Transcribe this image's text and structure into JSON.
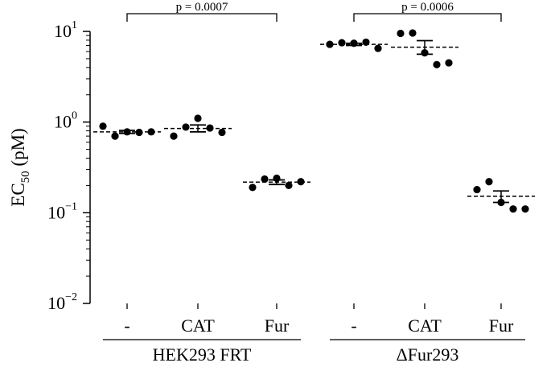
{
  "chart_data": {
    "type": "scatter",
    "title": "",
    "ylabel": "EC",
    "ylabel_sub": "50",
    "ylabel_unit": " (pM)",
    "yscale": "log",
    "ylim": [
      0.01,
      10
    ],
    "yticks": [
      {
        "value": 10,
        "base": "10",
        "exp": "1"
      },
      {
        "value": 1,
        "base": "10",
        "exp": "0"
      },
      {
        "value": 0.1,
        "base": "10",
        "exp": "−1"
      },
      {
        "value": 0.01,
        "base": "10",
        "exp": "−2"
      }
    ],
    "categories": [
      "-",
      "CAT",
      "Fur",
      "-",
      "CAT",
      "Fur"
    ],
    "groups": [
      {
        "label": "HEK293 FRT",
        "categories": [
          0,
          1,
          2
        ]
      },
      {
        "label": "ΔFur293",
        "categories": [
          3,
          4,
          5
        ]
      }
    ],
    "series": [
      {
        "category": 0,
        "values": [
          0.9,
          0.7,
          0.78,
          0.77,
          0.78
        ],
        "mean": 0.78,
        "sem": [
          0.75,
          0.81
        ]
      },
      {
        "category": 1,
        "values": [
          0.7,
          0.88,
          1.1,
          0.86,
          0.77
        ],
        "mean": 0.85,
        "sem": [
          0.78,
          0.93
        ]
      },
      {
        "category": 2,
        "values": [
          0.19,
          0.235,
          0.24,
          0.2,
          0.22
        ],
        "mean": 0.218,
        "sem": [
          0.205,
          0.23
        ]
      },
      {
        "category": 3,
        "values": [
          7.2,
          7.5,
          7.4,
          7.6,
          6.5
        ],
        "mean": 7.2,
        "sem": [
          7.0,
          7.4
        ]
      },
      {
        "category": 4,
        "values": [
          9.5,
          9.6,
          5.8,
          4.3,
          4.5
        ],
        "mean": 6.7,
        "sem": [
          5.6,
          7.9
        ]
      },
      {
        "category": 5,
        "values": [
          0.18,
          0.22,
          0.13,
          0.11,
          0.11
        ],
        "mean": 0.152,
        "sem": [
          0.13,
          0.174
        ]
      }
    ],
    "annotations": [
      {
        "from": 0,
        "to": 2,
        "text": "p = 0.0007"
      },
      {
        "from": 3,
        "to": 5,
        "text": "p = 0.0006"
      }
    ],
    "grid": false,
    "legend": "none"
  }
}
